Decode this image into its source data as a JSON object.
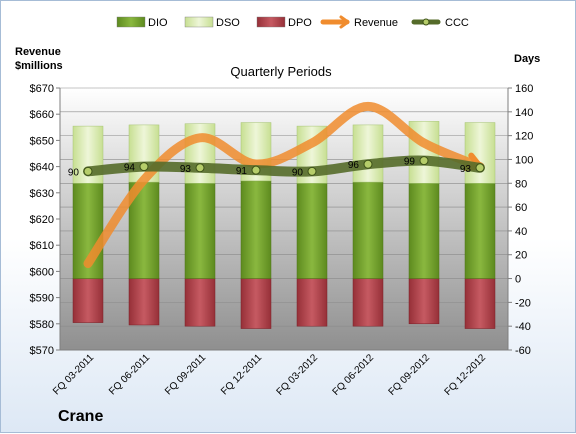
{
  "chart_data": {
    "type": "bar",
    "title": "Quarterly Periods",
    "company": "Crane",
    "y_left_label": "Revenue\n$millions",
    "y_right_label": "Days",
    "y_left_range": [
      570,
      670
    ],
    "y_right_range": [
      -60,
      160
    ],
    "y_left_ticks": [
      "$570",
      "$580",
      "$590",
      "$600",
      "$610",
      "$620",
      "$630",
      "$640",
      "$650",
      "$660",
      "$670"
    ],
    "y_right_ticks": [
      "-60",
      "-40",
      "-20",
      "0",
      "20",
      "40",
      "60",
      "80",
      "100",
      "120",
      "140",
      "160"
    ],
    "categories": [
      "FQ 03-2011",
      "FQ 06-2011",
      "FQ 09-2011",
      "FQ 12-2011",
      "FQ 03-2012",
      "FQ 06-2012",
      "FQ 09-2012",
      "FQ 12-2012"
    ],
    "legend": [
      "DIO",
      "DSO",
      "DPO",
      "Revenue",
      "CCC"
    ],
    "legend_position": "top",
    "series": [
      {
        "name": "DIO",
        "axis": "right",
        "color": "#77a033",
        "values": [
          80,
          81,
          80,
          82,
          80,
          81,
          80,
          80
        ]
      },
      {
        "name": "DSO",
        "axis": "right",
        "color": "#dcebb5",
        "values": [
          48,
          48,
          50,
          49,
          48,
          48,
          52,
          51
        ]
      },
      {
        "name": "DPO",
        "axis": "right",
        "color": "#b3414a",
        "values": [
          -37,
          -39,
          -40,
          -42,
          -40,
          -40,
          -38,
          -42
        ]
      },
      {
        "name": "Revenue",
        "axis": "left",
        "color": "#f08c2e",
        "values": [
          603,
          635,
          651,
          641,
          649,
          663,
          649,
          640
        ]
      },
      {
        "name": "CCC",
        "axis": "right",
        "color": "#556b2a",
        "values": [
          90,
          94,
          93,
          91,
          90,
          96,
          99,
          93
        ]
      }
    ],
    "ccc_labels": [
      "90",
      "94",
      "93",
      "91",
      "90",
      "96",
      "99",
      "93"
    ],
    "grid": true
  }
}
